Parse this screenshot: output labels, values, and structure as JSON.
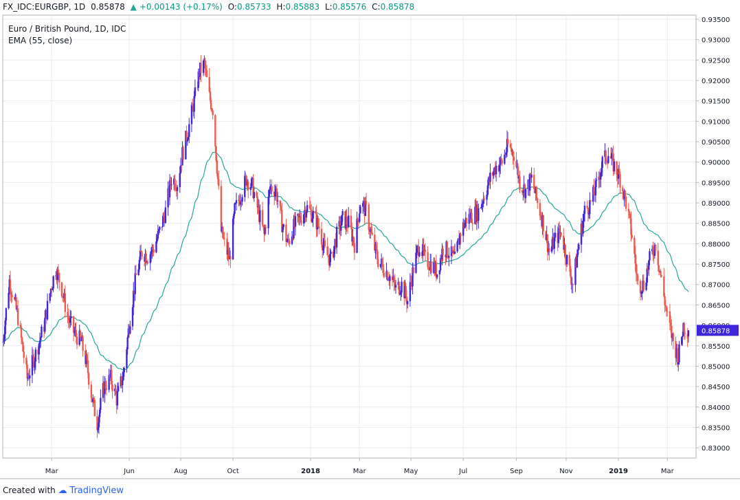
{
  "header": {
    "symbol": "FX_IDC:EURGBP, 1D",
    "last": "0.85878",
    "change": "+0.00143 (+0.17%)",
    "open_label": "O:",
    "open": "0.85733",
    "high_label": "H:",
    "high": "0.85883",
    "low_label": "L:",
    "low": "0.85576",
    "close_label": "C:",
    "close": "0.85878"
  },
  "footer": {
    "created_with": "Created with",
    "brand": "TradingView"
  },
  "chart_data": {
    "type": "candlestick",
    "title": "Euro / British Pound, 1D, IDC",
    "indicator": "EMA (55, close)",
    "ylim": [
      0.8275,
      0.936
    ],
    "y_ticks": [
      "0.93500",
      "0.93000",
      "0.92500",
      "0.92000",
      "0.91500",
      "0.91000",
      "0.90500",
      "0.90000",
      "0.89500",
      "0.89000",
      "0.88500",
      "0.88000",
      "0.87500",
      "0.87000",
      "0.86500",
      "0.86000",
      "0.85500",
      "0.85000",
      "0.84500",
      "0.84000",
      "0.83500",
      "0.83000"
    ],
    "x_ticks": [
      {
        "label": "Mar",
        "date": "2017-03-01",
        "bold": false
      },
      {
        "label": "Jun",
        "date": "2017-06-01",
        "bold": false
      },
      {
        "label": "Aug",
        "date": "2017-08-01",
        "bold": false
      },
      {
        "label": "Oct",
        "date": "2017-10-02",
        "bold": false
      },
      {
        "label": "2018",
        "date": "2018-01-02",
        "bold": true
      },
      {
        "label": "Mar",
        "date": "2018-03-01",
        "bold": false
      },
      {
        "label": "May",
        "date": "2018-05-01",
        "bold": false
      },
      {
        "label": "Jul",
        "date": "2018-07-02",
        "bold": false
      },
      {
        "label": "Sep",
        "date": "2018-09-03",
        "bold": false
      },
      {
        "label": "Nov",
        "date": "2018-11-01",
        "bold": false
      },
      {
        "label": "2019",
        "date": "2019-01-02",
        "bold": true
      },
      {
        "label": "Mar",
        "date": "2019-03-01",
        "bold": false
      }
    ],
    "last_price_label": "0.85878",
    "colors": {
      "up": "#3f26d9",
      "down": "#ef5a4e",
      "ema": "#26a69a",
      "last_price": "#3f26d9"
    },
    "close_path": [
      [
        "2017-01-02",
        0.856
      ],
      [
        "2017-01-10",
        0.871
      ],
      [
        "2017-01-20",
        0.862
      ],
      [
        "2017-01-31",
        0.847
      ],
      [
        "2017-02-10",
        0.853
      ],
      [
        "2017-02-20",
        0.86
      ],
      [
        "2017-02-28",
        0.869
      ],
      [
        "2017-03-06",
        0.874
      ],
      [
        "2017-03-13",
        0.869
      ],
      [
        "2017-03-20",
        0.862
      ],
      [
        "2017-03-28",
        0.858
      ],
      [
        "2017-04-05",
        0.856
      ],
      [
        "2017-04-12",
        0.85
      ],
      [
        "2017-04-18",
        0.842
      ],
      [
        "2017-04-24",
        0.836
      ],
      [
        "2017-05-02",
        0.845
      ],
      [
        "2017-05-10",
        0.847
      ],
      [
        "2017-05-17",
        0.842
      ],
      [
        "2017-05-25",
        0.848
      ],
      [
        "2017-06-02",
        0.862
      ],
      [
        "2017-06-09",
        0.872
      ],
      [
        "2017-06-16",
        0.878
      ],
      [
        "2017-06-23",
        0.877
      ],
      [
        "2017-06-30",
        0.879
      ],
      [
        "2017-07-07",
        0.883
      ],
      [
        "2017-07-14",
        0.888
      ],
      [
        "2017-07-21",
        0.896
      ],
      [
        "2017-07-28",
        0.895
      ],
      [
        "2017-08-03",
        0.902
      ],
      [
        "2017-08-10",
        0.908
      ],
      [
        "2017-08-17",
        0.915
      ],
      [
        "2017-08-23",
        0.922
      ],
      [
        "2017-08-29",
        0.924
      ],
      [
        "2017-09-04",
        0.916
      ],
      [
        "2017-09-08",
        0.913
      ],
      [
        "2017-09-13",
        0.899
      ],
      [
        "2017-09-18",
        0.883
      ],
      [
        "2017-09-22",
        0.88
      ],
      [
        "2017-09-28",
        0.876
      ],
      [
        "2017-10-04",
        0.888
      ],
      [
        "2017-10-11",
        0.892
      ],
      [
        "2017-10-18",
        0.896
      ],
      [
        "2017-10-25",
        0.894
      ],
      [
        "2017-11-01",
        0.888
      ],
      [
        "2017-11-08",
        0.882
      ],
      [
        "2017-11-15",
        0.894
      ],
      [
        "2017-11-22",
        0.893
      ],
      [
        "2017-11-29",
        0.885
      ],
      [
        "2017-12-06",
        0.88
      ],
      [
        "2017-12-13",
        0.884
      ],
      [
        "2017-12-20",
        0.886
      ],
      [
        "2017-12-28",
        0.889
      ],
      [
        "2018-01-05",
        0.887
      ],
      [
        "2018-01-12",
        0.884
      ],
      [
        "2018-01-19",
        0.878
      ],
      [
        "2018-01-26",
        0.876
      ],
      [
        "2018-02-02",
        0.882
      ],
      [
        "2018-02-09",
        0.886
      ],
      [
        "2018-02-16",
        0.885
      ],
      [
        "2018-02-23",
        0.88
      ],
      [
        "2018-03-02",
        0.89
      ],
      [
        "2018-03-09",
        0.888
      ],
      [
        "2018-03-16",
        0.881
      ],
      [
        "2018-03-23",
        0.876
      ],
      [
        "2018-03-30",
        0.874
      ],
      [
        "2018-04-06",
        0.872
      ],
      [
        "2018-04-13",
        0.869
      ],
      [
        "2018-04-20",
        0.87
      ],
      [
        "2018-04-27",
        0.866
      ],
      [
        "2018-05-04",
        0.874
      ],
      [
        "2018-05-11",
        0.88
      ],
      [
        "2018-05-18",
        0.876
      ],
      [
        "2018-05-25",
        0.875
      ],
      [
        "2018-06-01",
        0.873
      ],
      [
        "2018-06-08",
        0.879
      ],
      [
        "2018-06-15",
        0.878
      ],
      [
        "2018-06-22",
        0.876
      ],
      [
        "2018-06-29",
        0.883
      ],
      [
        "2018-07-06",
        0.886
      ],
      [
        "2018-07-13",
        0.887
      ],
      [
        "2018-07-20",
        0.888
      ],
      [
        "2018-07-27",
        0.892
      ],
      [
        "2018-08-03",
        0.896
      ],
      [
        "2018-08-10",
        0.899
      ],
      [
        "2018-08-17",
        0.9
      ],
      [
        "2018-08-24",
        0.904
      ],
      [
        "2018-08-31",
        0.902
      ],
      [
        "2018-09-07",
        0.895
      ],
      [
        "2018-09-14",
        0.893
      ],
      [
        "2018-09-21",
        0.896
      ],
      [
        "2018-09-28",
        0.89
      ],
      [
        "2018-10-05",
        0.885
      ],
      [
        "2018-10-12",
        0.878
      ],
      [
        "2018-10-19",
        0.881
      ],
      [
        "2018-10-26",
        0.883
      ],
      [
        "2018-11-02",
        0.876
      ],
      [
        "2018-11-09",
        0.87
      ],
      [
        "2018-11-16",
        0.88
      ],
      [
        "2018-11-23",
        0.888
      ],
      [
        "2018-11-30",
        0.89
      ],
      [
        "2018-12-07",
        0.894
      ],
      [
        "2018-12-14",
        0.9
      ],
      [
        "2018-12-21",
        0.902
      ],
      [
        "2018-12-28",
        0.899
      ],
      [
        "2019-01-04",
        0.896
      ],
      [
        "2019-01-11",
        0.89
      ],
      [
        "2019-01-18",
        0.882
      ],
      [
        "2019-01-25",
        0.87
      ],
      [
        "2019-02-01",
        0.87
      ],
      [
        "2019-02-08",
        0.876
      ],
      [
        "2019-02-15",
        0.88
      ],
      [
        "2019-02-22",
        0.871
      ],
      [
        "2019-03-01",
        0.862
      ],
      [
        "2019-03-08",
        0.856
      ],
      [
        "2019-03-14",
        0.852
      ],
      [
        "2019-03-20",
        0.86
      ],
      [
        "2019-03-26",
        0.8587
      ]
    ]
  }
}
